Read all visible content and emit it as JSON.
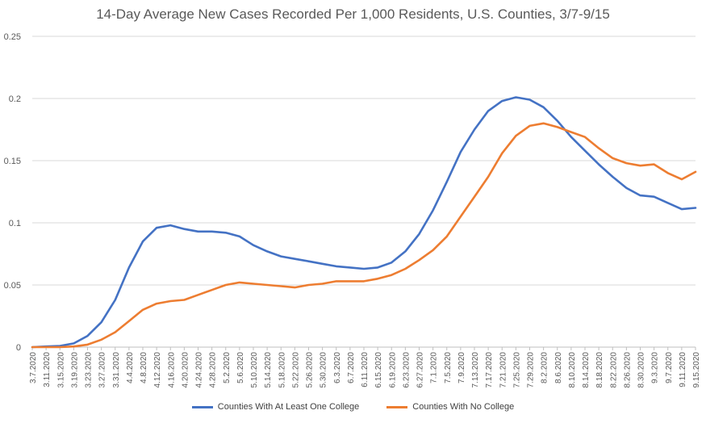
{
  "chart_data": {
    "type": "line",
    "title": "14-Day Average New Cases Recorded Per 1,000 Residents, U.S. Counties, 3/7-9/15",
    "ylim": [
      0,
      0.25
    ],
    "yticks": [
      "0",
      "0.05",
      "0.1",
      "0.15",
      "0.2",
      "0.25"
    ],
    "grid": true,
    "legend_position": "bottom",
    "x_ticks": [
      "3.7.2020",
      "3.11.2020",
      "3.15.2020",
      "3.19.2020",
      "3.23.2020",
      "3.27.2020",
      "3.31.2020",
      "4.4.2020",
      "4.8.2020",
      "4.12.2020",
      "4.16.2020",
      "4.20.2020",
      "4.24.2020",
      "4.28.2020",
      "5.2.2020",
      "5.6.2020",
      "5.10.2020",
      "5.14.2020",
      "5.18.2020",
      "5.22.2020",
      "5.26.2020",
      "5.30.2020",
      "6.3.2020",
      "6.7.2020",
      "6.11.2020",
      "6.15.2020",
      "6.19.2020",
      "6.23.2020",
      "6.27.2020",
      "7.1.2020",
      "7.5.2020",
      "7.9.2020",
      "7.13.2020",
      "7.17.2020",
      "7.21.2020",
      "7.25.2020",
      "7.29.2020",
      "8.2.2020",
      "8.6.2020",
      "8.10.2020",
      "8.14.2020",
      "8.18.2020",
      "8.22.2020",
      "8.26.2020",
      "8.30.2020",
      "9.3.2020",
      "9.7.2020",
      "9.11.2020",
      "9.15.2020"
    ],
    "series": [
      {
        "name": "Counties With At Least One College",
        "color": "#4472C4",
        "points": [
          [
            "3.7.2020",
            0
          ],
          [
            "3.11.2020",
            0.0005
          ],
          [
            "3.15.2020",
            0.001
          ],
          [
            "3.19.2020",
            0.003
          ],
          [
            "3.23.2020",
            0.009
          ],
          [
            "3.27.2020",
            0.02
          ],
          [
            "3.31.2020",
            0.038
          ],
          [
            "4.4.2020",
            0.064
          ],
          [
            "4.8.2020",
            0.085
          ],
          [
            "4.12.2020",
            0.096
          ],
          [
            "4.16.2020",
            0.098
          ],
          [
            "4.20.2020",
            0.095
          ],
          [
            "4.24.2020",
            0.093
          ],
          [
            "4.28.2020",
            0.093
          ],
          [
            "5.2.2020",
            0.092
          ],
          [
            "5.6.2020",
            0.089
          ],
          [
            "5.10.2020",
            0.082
          ],
          [
            "5.14.2020",
            0.077
          ],
          [
            "5.18.2020",
            0.073
          ],
          [
            "5.22.2020",
            0.071
          ],
          [
            "5.26.2020",
            0.069
          ],
          [
            "5.30.2020",
            0.067
          ],
          [
            "6.3.2020",
            0.065
          ],
          [
            "6.7.2020",
            0.064
          ],
          [
            "6.11.2020",
            0.063
          ],
          [
            "6.15.2020",
            0.064
          ],
          [
            "6.19.2020",
            0.068
          ],
          [
            "6.23.2020",
            0.077
          ],
          [
            "6.27.2020",
            0.091
          ],
          [
            "7.1.2020",
            0.11
          ],
          [
            "7.5.2020",
            0.133
          ],
          [
            "7.9.2020",
            0.157
          ],
          [
            "7.13.2020",
            0.175
          ],
          [
            "7.17.2020",
            0.19
          ],
          [
            "7.21.2020",
            0.198
          ],
          [
            "7.25.2020",
            0.201
          ],
          [
            "7.29.2020",
            0.199
          ],
          [
            "8.2.2020",
            0.193
          ],
          [
            "8.6.2020",
            0.182
          ],
          [
            "8.10.2020",
            0.169
          ],
          [
            "8.14.2020",
            0.158
          ],
          [
            "8.18.2020",
            0.147
          ],
          [
            "8.22.2020",
            0.137
          ],
          [
            "8.26.2020",
            0.128
          ],
          [
            "8.30.2020",
            0.122
          ],
          [
            "9.3.2020",
            0.121
          ],
          [
            "9.7.2020",
            0.116
          ],
          [
            "9.11.2020",
            0.111
          ],
          [
            "9.15.2020",
            0.112
          ]
        ]
      },
      {
        "name": "Counties With No College",
        "color": "#ED7D31",
        "points": [
          [
            "3.7.2020",
            0
          ],
          [
            "3.11.2020",
            0
          ],
          [
            "3.15.2020",
            0
          ],
          [
            "3.19.2020",
            0.0005
          ],
          [
            "3.23.2020",
            0.002
          ],
          [
            "3.27.2020",
            0.006
          ],
          [
            "3.31.2020",
            0.012
          ],
          [
            "4.4.2020",
            0.021
          ],
          [
            "4.8.2020",
            0.03
          ],
          [
            "4.12.2020",
            0.035
          ],
          [
            "4.16.2020",
            0.037
          ],
          [
            "4.20.2020",
            0.038
          ],
          [
            "4.24.2020",
            0.042
          ],
          [
            "4.28.2020",
            0.046
          ],
          [
            "5.2.2020",
            0.05
          ],
          [
            "5.6.2020",
            0.052
          ],
          [
            "5.10.2020",
            0.051
          ],
          [
            "5.14.2020",
            0.05
          ],
          [
            "5.18.2020",
            0.049
          ],
          [
            "5.22.2020",
            0.048
          ],
          [
            "5.26.2020",
            0.05
          ],
          [
            "5.30.2020",
            0.051
          ],
          [
            "6.3.2020",
            0.053
          ],
          [
            "6.7.2020",
            0.053
          ],
          [
            "6.11.2020",
            0.053
          ],
          [
            "6.15.2020",
            0.055
          ],
          [
            "6.19.2020",
            0.058
          ],
          [
            "6.23.2020",
            0.063
          ],
          [
            "6.27.2020",
            0.07
          ],
          [
            "7.1.2020",
            0.078
          ],
          [
            "7.5.2020",
            0.089
          ],
          [
            "7.9.2020",
            0.105
          ],
          [
            "7.13.2020",
            0.121
          ],
          [
            "7.17.2020",
            0.137
          ],
          [
            "7.21.2020",
            0.156
          ],
          [
            "7.25.2020",
            0.17
          ],
          [
            "7.29.2020",
            0.178
          ],
          [
            "8.2.2020",
            0.18
          ],
          [
            "8.6.2020",
            0.177
          ],
          [
            "8.10.2020",
            0.173
          ],
          [
            "8.14.2020",
            0.169
          ],
          [
            "8.18.2020",
            0.16
          ],
          [
            "8.22.2020",
            0.152
          ],
          [
            "8.26.2020",
            0.148
          ],
          [
            "8.30.2020",
            0.146
          ],
          [
            "9.3.2020",
            0.147
          ],
          [
            "9.7.2020",
            0.14
          ],
          [
            "9.11.2020",
            0.135
          ],
          [
            "9.15.2020",
            0.141
          ]
        ]
      }
    ]
  }
}
